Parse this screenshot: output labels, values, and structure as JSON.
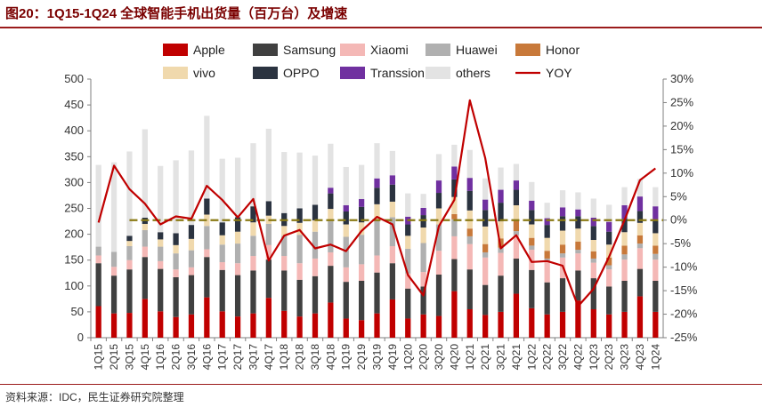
{
  "title": "图20：1Q15-1Q24 全球智能手机出货量（百万台）及增速",
  "source": "资料来源：IDC，民生证券研究院整理",
  "chart_data": {
    "type": "bar",
    "stacked": true,
    "categories": [
      "1Q15",
      "2Q15",
      "3Q15",
      "4Q15",
      "1Q16",
      "2Q16",
      "3Q16",
      "4Q16",
      "1Q17",
      "2Q17",
      "3Q17",
      "4Q17",
      "1Q18",
      "2Q18",
      "3Q18",
      "4Q18",
      "1Q19",
      "2Q19",
      "3Q19",
      "4Q19",
      "1Q20",
      "2Q20",
      "3Q20",
      "4Q20",
      "1Q21",
      "2Q21",
      "3Q21",
      "4Q21",
      "1Q22",
      "2Q22",
      "3Q22",
      "4Q22",
      "1Q23",
      "2Q23",
      "3Q23",
      "4Q23",
      "1Q24"
    ],
    "y_ticks_left": [
      "500",
      "450",
      "400",
      "350",
      "300",
      "250",
      "200",
      "150",
      "100",
      "50",
      "0"
    ],
    "y_ticks_right": [
      "30%",
      "25%",
      "20%",
      "15%",
      "10%",
      "5%",
      "0%",
      "-5%",
      "-10%",
      "-15%",
      "-20%",
      "-25%"
    ],
    "ylim_left": [
      0,
      500
    ],
    "ylim_right": [
      -25,
      30
    ],
    "series": [
      {
        "name": "Apple",
        "color": "#c00000",
        "values": [
          61,
          47,
          48,
          75,
          51,
          40,
          45,
          78,
          51,
          41,
          47,
          77,
          52,
          41,
          47,
          68,
          37,
          34,
          47,
          74,
          37,
          45,
          42,
          90,
          55,
          44,
          50,
          85,
          57,
          45,
          50,
          72,
          55,
          45,
          50,
          80,
          50
        ]
      },
      {
        "name": "Samsung",
        "color": "#404040",
        "values": [
          83,
          73,
          84,
          81,
          82,
          77,
          76,
          78,
          80,
          80,
          83,
          74,
          78,
          71,
          72,
          71,
          71,
          76,
          79,
          70,
          58,
          54,
          80,
          62,
          77,
          58,
          70,
          68,
          74,
          62,
          65,
          58,
          60,
          54,
          60,
          53,
          60
        ]
      },
      {
        "name": "Xiaomi",
        "color": "#f4b8b6",
        "values": [
          15,
          17,
          18,
          20,
          15,
          15,
          15,
          15,
          15,
          23,
          28,
          28,
          28,
          32,
          34,
          26,
          28,
          32,
          33,
          33,
          29,
          28,
          46,
          44,
          49,
          53,
          44,
          45,
          39,
          39,
          40,
          33,
          30,
          33,
          41,
          40,
          41
        ]
      },
      {
        "name": "Huawei",
        "color": "#b0b0b0",
        "values": [
          17,
          29,
          27,
          32,
          28,
          31,
          33,
          45,
          34,
          38,
          39,
          41,
          39,
          55,
          52,
          60,
          59,
          57,
          67,
          56,
          48,
          56,
          51,
          33,
          15,
          10,
          10,
          8,
          8,
          7,
          8,
          7,
          8,
          8,
          10,
          9,
          11
        ]
      },
      {
        "name": "Honor",
        "color": "#c8793a",
        "values": [
          0,
          0,
          0,
          0,
          0,
          0,
          0,
          0,
          0,
          0,
          0,
          0,
          0,
          0,
          0,
          0,
          0,
          0,
          0,
          0,
          0,
          0,
          0,
          10,
          15,
          16,
          18,
          20,
          15,
          15,
          17,
          16,
          14,
          15,
          17,
          16,
          16
        ]
      },
      {
        "name": "vivo",
        "color": "#f0d9ad",
        "values": [
          0,
          0,
          10,
          12,
          14,
          16,
          22,
          22,
          18,
          23,
          26,
          16,
          19,
          23,
          22,
          24,
          24,
          24,
          32,
          30,
          25,
          30,
          31,
          33,
          35,
          34,
          33,
          30,
          26,
          25,
          27,
          25,
          22,
          25,
          26,
          24,
          24
        ]
      },
      {
        "name": "OPPO",
        "color": "#2b3340",
        "values": [
          0,
          0,
          10,
          12,
          14,
          23,
          27,
          31,
          25,
          28,
          31,
          28,
          25,
          28,
          30,
          30,
          25,
          30,
          32,
          33,
          22,
          24,
          30,
          34,
          38,
          32,
          36,
          30,
          28,
          25,
          28,
          24,
          27,
          25,
          26,
          23,
          24
        ]
      },
      {
        "name": "Transsion",
        "color": "#7030a0",
        "values": [
          0,
          0,
          0,
          0,
          0,
          0,
          0,
          0,
          0,
          0,
          0,
          0,
          0,
          0,
          0,
          11,
          12,
          15,
          18,
          18,
          15,
          14,
          24,
          25,
          25,
          20,
          25,
          18,
          18,
          13,
          17,
          13,
          16,
          19,
          26,
          28,
          28
        ]
      },
      {
        "name": "others",
        "color": "#e3e3e3",
        "values": [
          158,
          173,
          163,
          171,
          128,
          141,
          144,
          160,
          123,
          115,
          122,
          140,
          118,
          108,
          95,
          85,
          74,
          66,
          68,
          47,
          45,
          27,
          51,
          42,
          54,
          41,
          43,
          32,
          36,
          30,
          33,
          33,
          37,
          33,
          35,
          34,
          37
        ]
      }
    ],
    "line": {
      "name": "YOY",
      "color": "#c00000",
      "values": [
        -0.5,
        11.6,
        6.6,
        3.5,
        -0.9,
        0.8,
        0.3,
        7.3,
        4.3,
        0.6,
        4.5,
        -8.6,
        -3.3,
        -2.1,
        -6.0,
        -5.2,
        -6.6,
        -2.3,
        0.7,
        -0.9,
        -11.7,
        -16.0,
        -1.3,
        4.3,
        25.5,
        13.2,
        -6.0,
        -3.2,
        -8.9,
        -8.7,
        -9.7,
        -18.3,
        -14.6,
        -7.8,
        0.0,
        8.5,
        11.0
      ]
    },
    "reference_line": {
      "axis": "right",
      "value": 0,
      "color": "#8a7a14"
    },
    "legend_rows": [
      [
        "Apple",
        "Samsung",
        "Xiaomi",
        "Huawei",
        "Honor"
      ],
      [
        "vivo",
        "OPPO",
        "Transsion",
        "others",
        "YOY"
      ]
    ],
    "legend_position": "top",
    "grid": false
  }
}
